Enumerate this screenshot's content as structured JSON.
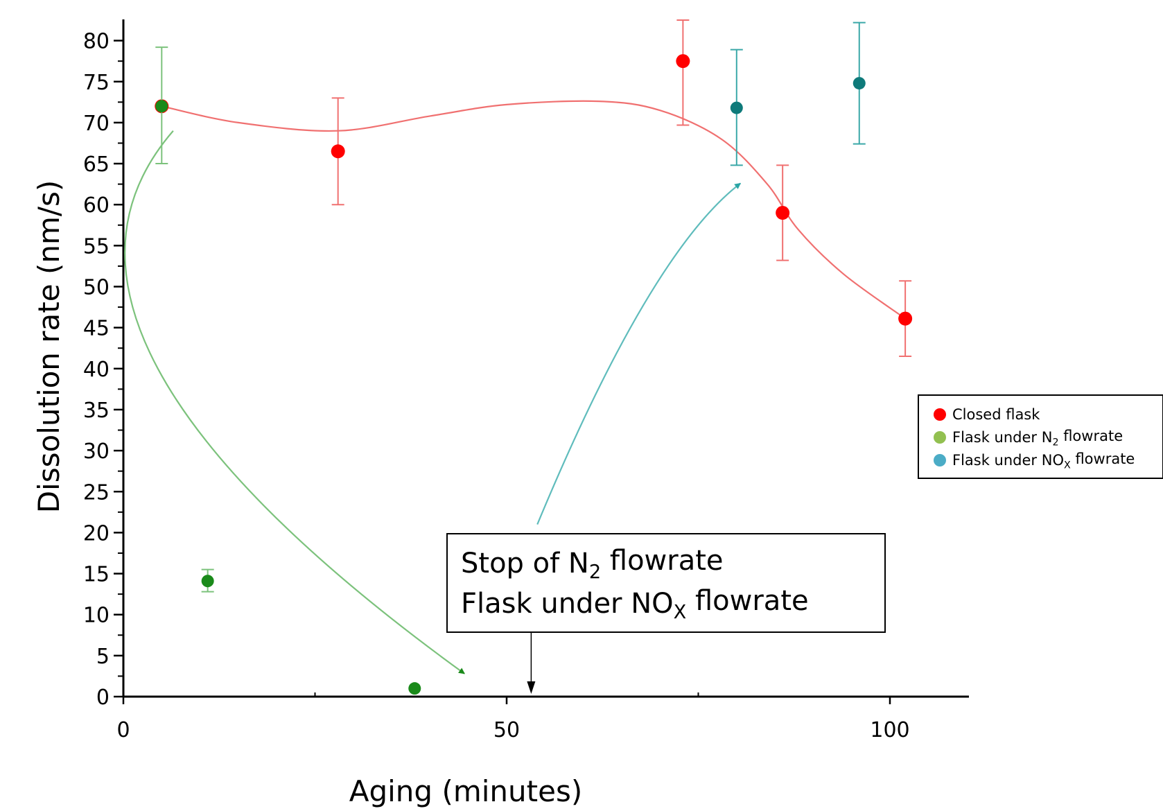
{
  "chart_data": {
    "type": "scatter",
    "xlabel": "Aging (minutes)",
    "ylabel": "Dissolution rate (nm/s)",
    "xlim": [
      0,
      110
    ],
    "ylim": [
      0,
      82
    ],
    "x_ticks": [
      0,
      50,
      100
    ],
    "x_minor_ticks": [
      25,
      75
    ],
    "y_ticks": [
      0,
      5,
      10,
      15,
      20,
      25,
      30,
      35,
      40,
      45,
      50,
      55,
      60,
      65,
      70,
      75,
      80
    ],
    "y_tick_labels": [
      "0",
      "5",
      "10",
      "15",
      "20",
      "25",
      "30",
      "35",
      "40",
      "45",
      "50",
      "55",
      "60",
      "65",
      "70",
      "75",
      "80"
    ],
    "grid": false,
    "legend_position": "right",
    "series": [
      {
        "name": "Closed flask",
        "name_parts": [
          "Closed flask"
        ],
        "color": "#ff0000",
        "legend_color": "#ff0000",
        "marker": "circle",
        "points": [
          {
            "x": 5,
            "y": 72,
            "err": [
              72,
              72
            ]
          },
          {
            "x": 28,
            "y": 66.5,
            "err": [
              60,
              73
            ]
          },
          {
            "x": 73,
            "y": 77.5,
            "err": [
              69.7,
              82.5
            ]
          },
          {
            "x": 86,
            "y": 59,
            "err": [
              53.2,
              64.8
            ]
          },
          {
            "x": 102,
            "y": 46.1,
            "err": [
              41.5,
              50.7
            ]
          }
        ],
        "fit_curve": [
          [
            5,
            72
          ],
          [
            15,
            70
          ],
          [
            28,
            69
          ],
          [
            40,
            70.8
          ],
          [
            50,
            72.2
          ],
          [
            62,
            72.6
          ],
          [
            70,
            71.5
          ],
          [
            78,
            68
          ],
          [
            84,
            62.5
          ],
          [
            88,
            57
          ],
          [
            94,
            51.5
          ],
          [
            102,
            46.1
          ]
        ]
      },
      {
        "name": "Flask under N2 flowrate",
        "name_parts": [
          "Flask under N",
          "2",
          " flowrate"
        ],
        "color": "#1a8a1a",
        "legend_color": "#92c050",
        "marker": "circle",
        "points": [
          {
            "x": 5,
            "y": 72,
            "err": [
              65,
              79.2
            ]
          },
          {
            "x": 11,
            "y": 14.1,
            "err": [
              12.8,
              15.5
            ]
          },
          {
            "x": 38,
            "y": 1,
            "err": [
              1,
              1
            ]
          }
        ]
      },
      {
        "name": "Flask under NOX flowrate",
        "name_parts": [
          "Flask under NO",
          "X",
          " flowrate"
        ],
        "color": "#0e7a7a",
        "legend_color": "#4bacc6",
        "marker": "circle",
        "points": [
          {
            "x": 80,
            "y": 71.8,
            "err": [
              64.8,
              78.9
            ]
          },
          {
            "x": 96,
            "y": 74.8,
            "err": [
              67.4,
              82.2
            ]
          }
        ]
      }
    ],
    "annotations": [
      {
        "text_lines": [
          [
            "Stop of N",
            "2",
            " flowrate"
          ],
          [
            "Flask under NO",
            "X",
            " flowrate"
          ]
        ],
        "pointer_x": 53.2
      }
    ],
    "arrows": [
      {
        "color": "#1a8a1a",
        "from": [
          6.5,
          69
        ],
        "via": [
          4.5,
          40
        ],
        "to": [
          44.5,
          2.8
        ]
      },
      {
        "color": "#2aa5a5",
        "from": [
          54,
          21
        ],
        "via": [
          68,
          48
        ],
        "to": [
          80.5,
          62.6
        ]
      }
    ]
  }
}
